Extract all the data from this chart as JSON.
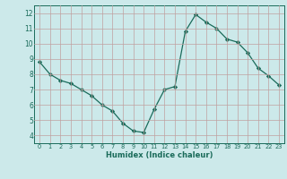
{
  "x": [
    0,
    1,
    2,
    3,
    4,
    5,
    6,
    7,
    8,
    9,
    10,
    11,
    12,
    13,
    14,
    15,
    16,
    17,
    18,
    19,
    20,
    21,
    22,
    23
  ],
  "y": [
    8.8,
    8.0,
    7.6,
    7.4,
    7.0,
    6.6,
    6.0,
    5.6,
    4.8,
    4.3,
    4.2,
    5.7,
    7.0,
    7.2,
    10.8,
    11.9,
    11.4,
    11.0,
    10.3,
    10.1,
    9.4,
    8.4,
    7.9,
    7.3
  ],
  "xlabel": "Humidex (Indice chaleur)",
  "ylim": [
    3.5,
    12.5
  ],
  "xlim": [
    -0.5,
    23.5
  ],
  "yticks": [
    4,
    5,
    6,
    7,
    8,
    9,
    10,
    11,
    12
  ],
  "xticks": [
    0,
    1,
    2,
    3,
    4,
    5,
    6,
    7,
    8,
    9,
    10,
    11,
    12,
    13,
    14,
    15,
    16,
    17,
    18,
    19,
    20,
    21,
    22,
    23
  ],
  "line_color": "#1a6b5a",
  "marker": "D",
  "marker_size": 2.2,
  "bg_color": "#cce9ea",
  "grid_color": "#c0a0a0",
  "label_color": "#1a6b5a",
  "spine_color": "#1a6b5a"
}
